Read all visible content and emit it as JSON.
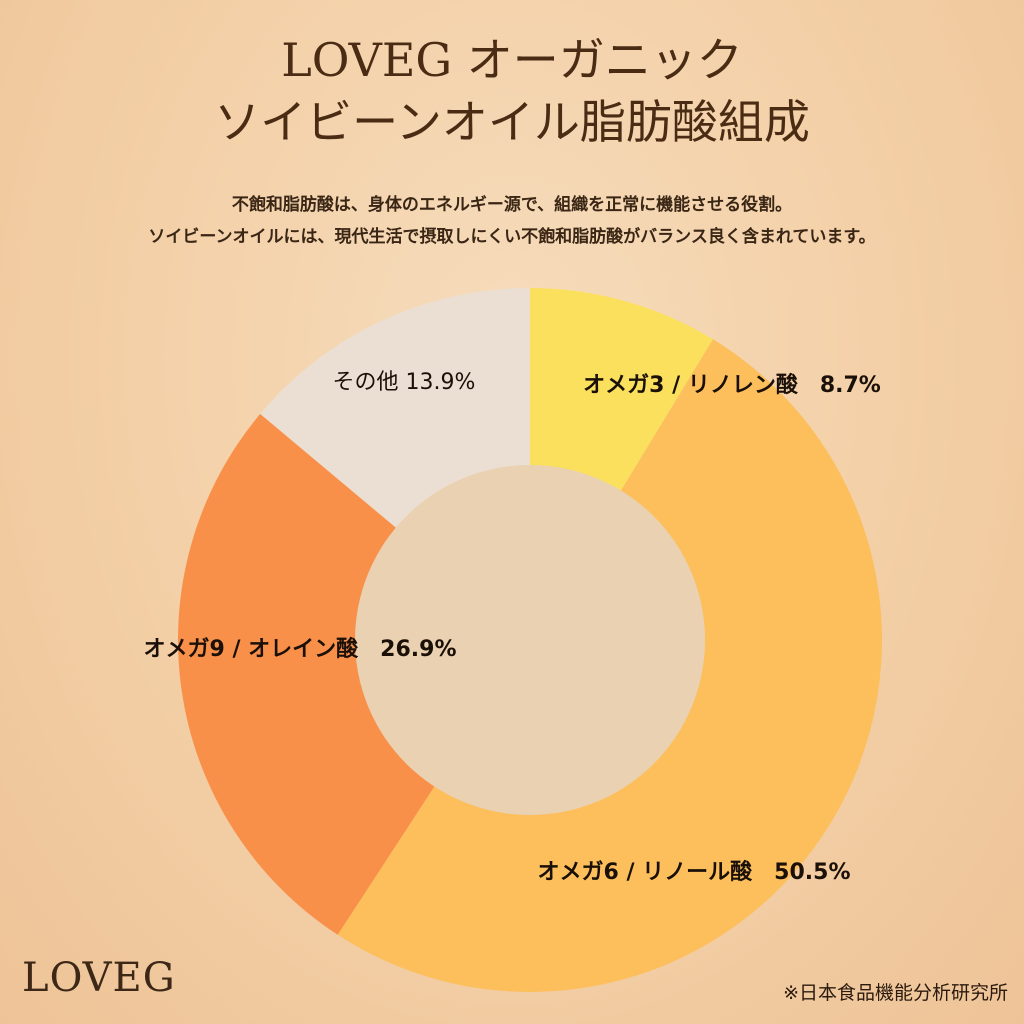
{
  "header": {
    "title_line1": "LOVEG オーガニック",
    "title_line2": "ソイビーンオイル脂肪酸組成",
    "description_line1": "不飽和脂肪酸は、身体のエネルギー源で、組織を正常に機能させる役割。",
    "description_line2": "ソイビーンオイルには、現代生活で摂取しにくい不飽和脂肪酸がバランス良く含まれています。"
  },
  "chart_data": {
    "type": "pie",
    "donut": true,
    "slices": [
      {
        "name": "オメガ3 / リノレン酸",
        "value": 8.7,
        "label": "8.7%",
        "color": "#fbe05e",
        "bold": true
      },
      {
        "name": "オメガ6 / リノール酸",
        "value": 50.5,
        "label": "50.5%",
        "color": "#fcbf5c",
        "bold": true
      },
      {
        "name": "オメガ9 / オレイン酸",
        "value": 26.9,
        "label": "26.9%",
        "color": "#f9904a",
        "bold": true
      },
      {
        "name": "その他",
        "value": 13.9,
        "label": "13.9%",
        "color": "#eadfd2",
        "bold": false
      }
    ],
    "hole_color": "#ead1b1"
  },
  "footer": {
    "logo": "LOVEG",
    "source": "※日本食品機能分析研究所"
  }
}
